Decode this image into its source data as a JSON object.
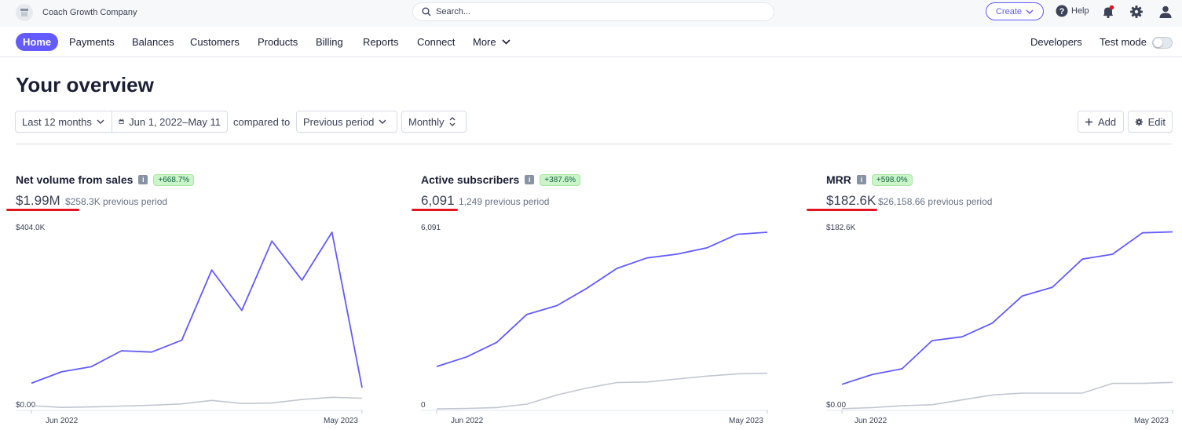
{
  "topbar": {
    "company_name": "Coach Growth Company",
    "search_placeholder": "Search...",
    "create_label": "Create",
    "help_label": "Help"
  },
  "nav": {
    "items": [
      "Home",
      "Payments",
      "Balances",
      "Customers",
      "Products",
      "Billing",
      "Reports",
      "Connect",
      "More"
    ],
    "developers_label": "Developers",
    "test_mode_label": "Test mode",
    "test_mode_on": false
  },
  "page": {
    "title": "Your overview"
  },
  "filters": {
    "range_label": "Last 12 months",
    "date_label": "Jun 1, 2022–May 11",
    "compared_label": "compared to",
    "comparison_label": "Previous period",
    "interval_label": "Monthly",
    "add_label": "Add",
    "edit_label": "Edit"
  },
  "colors": {
    "accent": "#635bff",
    "comparison_line": "#c1c6d0",
    "badge_bg": "#cbf4c9",
    "annotation_red": "#e5121f"
  },
  "chart_data": [
    {
      "type": "line",
      "title": "Net volume from sales",
      "change_badge": "+668.7%",
      "value": "$1.99M",
      "previous": "$258.3K previous period",
      "ytop_label": "$404.0K",
      "ybottom_label": "$0.00",
      "ylim": [
        0,
        404.0
      ],
      "x_start_label": "Jun 2022",
      "x_end_label": "May 2023",
      "series": [
        {
          "values": [
            60,
            86,
            98,
            134,
            131,
            158,
            318,
            226,
            384,
            295,
            404,
            50
          ]
        },
        {
          "values": [
            9,
            5,
            6,
            8,
            10,
            13,
            21,
            14,
            15,
            23,
            28,
            26
          ]
        }
      ]
    },
    {
      "type": "line",
      "title": "Active subscribers",
      "change_badge": "+387.6%",
      "value": "6,091",
      "previous": "1,249 previous period",
      "ytop_label": "6,091",
      "ybottom_label": "0",
      "ylim": [
        0,
        6091
      ],
      "x_start_label": "Jun 2022",
      "x_end_label": "May 2023",
      "series": [
        {
          "values": [
            1480,
            1810,
            2310,
            3270,
            3570,
            4170,
            4850,
            5210,
            5340,
            5560,
            6020,
            6091
          ]
        },
        {
          "values": [
            25,
            40,
            70,
            190,
            500,
            740,
            930,
            950,
            1050,
            1150,
            1230,
            1250
          ]
        }
      ]
    },
    {
      "type": "line",
      "title": "MRR",
      "change_badge": "+598.0%",
      "value": "$182.6K",
      "previous": "$26,158.66 previous period",
      "ytop_label": "$182.6K",
      "ybottom_label": "$0.00",
      "ylim": [
        0,
        182.6
      ],
      "x_start_label": "Jun 2022",
      "x_end_label": "May 2023",
      "series": [
        {
          "values": [
            26,
            36,
            42,
            71,
            75,
            89,
            117,
            126,
            155,
            160,
            182,
            183
          ]
        },
        {
          "values": [
            1,
            2,
            4,
            5,
            10,
            15,
            17,
            17,
            17,
            27,
            27,
            28
          ]
        }
      ]
    }
  ]
}
